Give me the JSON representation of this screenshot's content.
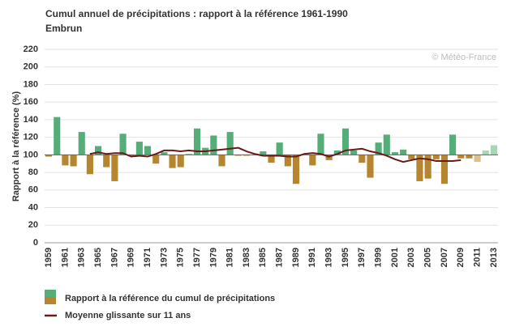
{
  "chart_data": {
    "type": "bar",
    "title": "Cumul annuel de précipitations : rapport à la référence 1961-1990",
    "subtitle": "Embrun",
    "watermark": "© Météo-France",
    "y_label": "Rapport à la référence (%)",
    "categories": [
      "1959",
      null,
      "1961",
      null,
      "1963",
      null,
      "1965",
      null,
      "1967",
      null,
      "1969",
      null,
      "1971",
      null,
      "1973",
      null,
      "1975",
      null,
      "1977",
      null,
      "1979",
      null,
      "1981",
      null,
      "1983",
      null,
      "1985",
      null,
      "1987",
      null,
      "1989",
      null,
      "1991",
      null,
      "1993",
      null,
      "1995",
      null,
      "1997",
      null,
      "1999",
      null,
      "2001",
      null,
      "2003",
      null,
      "2005",
      null,
      "2007",
      null,
      "2009",
      null,
      "2011",
      null,
      "2013"
    ],
    "baseline": 100,
    "ylim": [
      0,
      220
    ],
    "yticks": [
      0,
      20,
      40,
      60,
      80,
      100,
      120,
      140,
      160,
      180,
      200,
      220
    ],
    "grid": true,
    "series": [
      {
        "name": "Rapport à la référence du cumul de précipitations",
        "type": "bar",
        "values": [
          98,
          143,
          88,
          87,
          126,
          78,
          110,
          86,
          70,
          124,
          99,
          115,
          110,
          90,
          103,
          85,
          86,
          101,
          130,
          108,
          122,
          87,
          126,
          99,
          99,
          100,
          104,
          91,
          114,
          87,
          67,
          100,
          88,
          124,
          94,
          105,
          130,
          105,
          91,
          74,
          114,
          123,
          103,
          106,
          95,
          70,
          73,
          95,
          67,
          123,
          96,
          96,
          92,
          105,
          111
        ],
        "colors": [
          "#b5862f",
          "#55ad79",
          "#b5862f",
          "#b5862f",
          "#55ad79",
          "#b5862f",
          "#55ad79",
          "#b5862f",
          "#b5862f",
          "#55ad79",
          "#b5862f",
          "#55ad79",
          "#55ad79",
          "#b5862f",
          "#55ad79",
          "#b5862f",
          "#b5862f",
          "#55ad79",
          "#55ad79",
          "#55ad79",
          "#55ad79",
          "#b5862f",
          "#55ad79",
          "#b5862f",
          "#b5862f",
          "#55ad79",
          "#55ad79",
          "#b5862f",
          "#55ad79",
          "#b5862f",
          "#b5862f",
          "#55ad79",
          "#b5862f",
          "#55ad79",
          "#b5862f",
          "#55ad79",
          "#55ad79",
          "#55ad79",
          "#b5862f",
          "#b5862f",
          "#55ad79",
          "#55ad79",
          "#55ad79",
          "#55ad79",
          "#b5862f",
          "#b5862f",
          "#b5862f",
          "#b5862f",
          "#b5862f",
          "#55ad79",
          "#b5862f",
          "#b5862f",
          "#dcc08a",
          "#a9d6b8",
          "#a9d6b8"
        ]
      },
      {
        "name": "Moyenne glissante sur 11 ans",
        "type": "line",
        "color": "#6b1a1a",
        "values": [
          null,
          null,
          null,
          null,
          null,
          101,
          103,
          101,
          102,
          102,
          98,
          99,
          98,
          101,
          105,
          105,
          104,
          105,
          104,
          104,
          105,
          106,
          107,
          108,
          104,
          101,
          99,
          99,
          99,
          98,
          98,
          101,
          102,
          101,
          98,
          101,
          105,
          106,
          107,
          104,
          102,
          99,
          95,
          92,
          94,
          96,
          95,
          93,
          93,
          93,
          94,
          null,
          null,
          null,
          null
        ]
      }
    ]
  }
}
